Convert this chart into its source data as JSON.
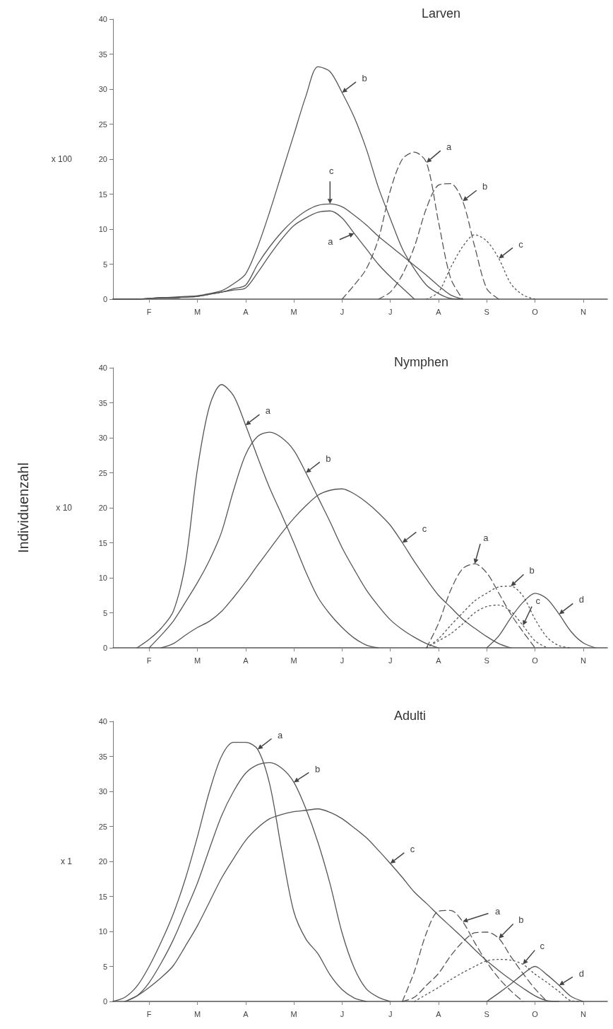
{
  "chart_data": [
    {
      "type": "line",
      "title": "Larven",
      "ylabel": "x 100",
      "ylim": [
        0,
        40
      ],
      "yticks": [
        0,
        5,
        10,
        15,
        20,
        25,
        30,
        35,
        40
      ],
      "categories": [
        null,
        null,
        null,
        "F",
        null,
        null,
        null,
        "M",
        null,
        null,
        null,
        "A",
        null,
        null,
        null,
        "M",
        null,
        null,
        null,
        "J",
        null,
        null,
        null,
        "J",
        null,
        null,
        null,
        "A",
        null,
        null,
        null,
        "S",
        null,
        null,
        null,
        "O",
        null,
        null,
        null,
        "N",
        null,
        null
      ],
      "series": [
        {
          "color": "#555555",
          "line_style": "solid",
          "values": [
            0,
            0,
            0,
            0.1,
            0.2,
            0.3,
            0.4,
            0.5,
            0.8,
            1.2,
            2.2,
            3.6,
            7.5,
            12.5,
            18,
            23.5,
            29,
            33.2,
            32.5,
            29.5,
            26,
            21.5,
            16,
            11.5,
            7.2,
            4.3,
            2,
            0.8,
            0.1,
            0,
            null,
            null,
            null,
            null,
            null,
            null,
            null,
            null,
            null,
            null,
            null,
            null
          ]
        },
        {
          "color": "#555555",
          "line_style": "solid",
          "values": [
            0,
            0,
            0,
            0.1,
            0.2,
            0.2,
            0.3,
            0.4,
            0.7,
            1,
            1.5,
            2,
            5,
            7.5,
            9.6,
            11.3,
            12.6,
            13.4,
            13.6,
            13.2,
            12,
            10.6,
            9,
            7.6,
            6.2,
            4.8,
            3.4,
            1.9,
            0.6,
            0,
            null,
            null,
            null,
            null,
            null,
            null,
            null,
            null,
            null,
            null,
            null,
            null
          ]
        },
        {
          "color": "#555555",
          "line_style": "solid",
          "values": [
            0,
            0,
            0,
            0.1,
            0.2,
            0.2,
            0.3,
            0.4,
            0.7,
            1,
            1.3,
            1.6,
            3.8,
            6.3,
            8.6,
            10.5,
            11.6,
            12.4,
            12.6,
            11.6,
            9.4,
            7.2,
            5,
            3.2,
            1.6,
            0,
            null,
            null,
            null,
            null,
            null,
            null,
            null,
            null,
            null,
            null,
            null,
            null,
            null,
            null,
            null,
            null
          ]
        },
        {
          "color": "#555555",
          "line_style": "dashed",
          "values": [
            null,
            null,
            null,
            null,
            null,
            null,
            null,
            null,
            null,
            null,
            null,
            null,
            null,
            null,
            null,
            null,
            null,
            null,
            null,
            0,
            2,
            4.3,
            8.5,
            15.5,
            20,
            21,
            19.5,
            11,
            3,
            0,
            null,
            null,
            null,
            null,
            null,
            null,
            null,
            null,
            null,
            null,
            null,
            null
          ]
        },
        {
          "color": "#555555",
          "line_style": "dashed",
          "values": [
            null,
            null,
            null,
            null,
            null,
            null,
            null,
            null,
            null,
            null,
            null,
            null,
            null,
            null,
            null,
            null,
            null,
            null,
            null,
            null,
            null,
            null,
            0,
            1,
            3.5,
            7.5,
            13,
            16.3,
            16.5,
            14,
            7.5,
            1.5,
            0,
            null,
            null,
            null,
            null,
            null,
            null,
            null,
            null,
            null
          ]
        },
        {
          "color": "#555555",
          "line_style": "dotted",
          "values": [
            null,
            null,
            null,
            null,
            null,
            null,
            null,
            null,
            null,
            null,
            null,
            null,
            null,
            null,
            null,
            null,
            null,
            null,
            null,
            null,
            null,
            null,
            null,
            null,
            null,
            null,
            0,
            1,
            4.5,
            7.5,
            9.2,
            8.3,
            5.8,
            2.2,
            0.6,
            0,
            null,
            null,
            null,
            null,
            null,
            null
          ]
        }
      ],
      "annotations": [
        "b",
        "c",
        "a",
        "a",
        "b",
        "c"
      ]
    },
    {
      "type": "line",
      "title": "Nymphen",
      "ylabel": "x 10",
      "ylim": [
        0,
        40
      ],
      "yticks": [
        0,
        5,
        10,
        15,
        20,
        25,
        30,
        35,
        40
      ],
      "categories": [
        null,
        null,
        null,
        "F",
        null,
        null,
        null,
        "M",
        null,
        null,
        null,
        "A",
        null,
        null,
        null,
        "M",
        null,
        null,
        null,
        "J",
        null,
        null,
        null,
        "J",
        null,
        null,
        null,
        "A",
        null,
        null,
        null,
        "S",
        null,
        null,
        null,
        "O",
        null,
        null,
        null,
        "N",
        null,
        null
      ],
      "series": [
        {
          "color": "#555555",
          "line_style": "solid",
          "values": [
            null,
            null,
            0,
            1.2,
            2.8,
            5.2,
            12,
            25.5,
            34.5,
            37.6,
            36,
            31.8,
            27.2,
            22.8,
            19,
            15,
            10.8,
            7.2,
            4.8,
            2.9,
            1.4,
            0.4,
            0,
            null,
            null,
            null,
            null,
            null,
            null,
            null,
            null,
            null,
            null,
            null,
            null,
            null,
            null,
            null,
            null,
            null,
            null,
            null
          ]
        },
        {
          "color": "#555555",
          "line_style": "solid",
          "values": [
            null,
            null,
            null,
            0,
            1.8,
            3.8,
            6.5,
            9.3,
            12.5,
            16.5,
            22.5,
            27.6,
            30.2,
            30.8,
            30,
            28.2,
            25,
            21.5,
            18,
            14.3,
            11.2,
            8.3,
            6,
            4,
            2.6,
            1.5,
            0.6,
            0,
            null,
            null,
            null,
            null,
            null,
            null,
            null,
            null,
            null,
            null,
            null,
            null,
            null,
            null
          ]
        },
        {
          "color": "#555555",
          "line_style": "solid",
          "values": [
            null,
            null,
            null,
            null,
            0,
            0.6,
            1.8,
            2.9,
            3.8,
            5.2,
            7.2,
            9.4,
            11.8,
            14.1,
            16.4,
            18.5,
            20.3,
            21.8,
            22.5,
            22.7,
            22,
            20.8,
            19.3,
            17.5,
            15,
            12.3,
            9.8,
            7.5,
            5.8,
            4.1,
            2.8,
            1.6,
            0.6,
            0,
            null,
            null,
            null,
            null,
            null,
            null,
            null,
            null
          ]
        },
        {
          "color": "#555555",
          "line_style": "dashed",
          "values": [
            null,
            null,
            null,
            null,
            null,
            null,
            null,
            null,
            null,
            null,
            null,
            null,
            null,
            null,
            null,
            null,
            null,
            null,
            null,
            null,
            null,
            null,
            null,
            null,
            null,
            null,
            0,
            3.5,
            8.2,
            11.3,
            12,
            10.7,
            7.8,
            4.8,
            2.3,
            0,
            null,
            null,
            null,
            null,
            null,
            null
          ]
        },
        {
          "color": "#555555",
          "line_style": "dotted",
          "values": [
            null,
            null,
            null,
            null,
            null,
            null,
            null,
            null,
            null,
            null,
            null,
            null,
            null,
            null,
            null,
            null,
            null,
            null,
            null,
            null,
            null,
            null,
            null,
            null,
            null,
            null,
            0,
            1.3,
            3.2,
            5,
            6.7,
            7.8,
            8.7,
            8.8,
            7.4,
            4.1,
            1.5,
            0.3,
            0,
            null,
            null,
            null
          ]
        },
        {
          "color": "#555555",
          "line_style": "dotted",
          "values": [
            null,
            null,
            null,
            null,
            null,
            null,
            null,
            null,
            null,
            null,
            null,
            null,
            null,
            null,
            null,
            null,
            null,
            null,
            null,
            null,
            null,
            null,
            null,
            null,
            null,
            null,
            0,
            1,
            2,
            3.4,
            5,
            5.9,
            6.1,
            5.2,
            3.2,
            1,
            0,
            null,
            null,
            null,
            null,
            null
          ]
        },
        {
          "color": "#555555",
          "line_style": "solid",
          "values": [
            null,
            null,
            null,
            null,
            null,
            null,
            null,
            null,
            null,
            null,
            null,
            null,
            null,
            null,
            null,
            null,
            null,
            null,
            null,
            null,
            null,
            null,
            null,
            null,
            null,
            null,
            null,
            null,
            null,
            null,
            null,
            0,
            1.7,
            4.3,
            6.5,
            7.8,
            7,
            4.8,
            2.3,
            0.7,
            0,
            null
          ]
        }
      ],
      "annotations": [
        "Individuenzahl",
        "a",
        "b",
        "c",
        "a",
        "b",
        "c",
        "d"
      ]
    },
    {
      "type": "line",
      "title": "Adulti",
      "ylabel": "x 1",
      "ylim": [
        0,
        40
      ],
      "yticks": [
        0,
        5,
        10,
        15,
        20,
        25,
        30,
        35,
        40
      ],
      "categories": [
        null,
        null,
        null,
        "F",
        null,
        null,
        null,
        "M",
        null,
        null,
        null,
        "A",
        null,
        null,
        null,
        "M",
        null,
        null,
        null,
        "J",
        null,
        null,
        null,
        "J",
        null,
        null,
        null,
        "A",
        null,
        null,
        null,
        "S",
        null,
        null,
        null,
        "O",
        null,
        null,
        null,
        "N",
        null,
        null
      ],
      "series": [
        {
          "color": "#555555",
          "line_style": "solid",
          "values": [
            0,
            0.6,
            2.2,
            5,
            8.5,
            12.5,
            17.5,
            23.5,
            30,
            35,
            37,
            37,
            36,
            31,
            21.5,
            12.8,
            8.9,
            6.8,
            3.8,
            1.7,
            0.5,
            0,
            null,
            null,
            null,
            null,
            null,
            null,
            null,
            null,
            null,
            null,
            null,
            null,
            null,
            null,
            null,
            null,
            null,
            null,
            null,
            null
          ]
        },
        {
          "color": "#555555",
          "line_style": "solid",
          "values": [
            null,
            0,
            0.8,
            2.7,
            5.5,
            8.8,
            12.8,
            16.9,
            21.8,
            26.5,
            30,
            32.6,
            33.8,
            34.1,
            33.3,
            31.3,
            27.5,
            22.7,
            16.8,
            9.8,
            4.8,
            1.8,
            0.6,
            0,
            null,
            null,
            null,
            null,
            null,
            null,
            null,
            null,
            null,
            null,
            null,
            null,
            null,
            null,
            null,
            null,
            null,
            null
          ]
        },
        {
          "color": "#555555",
          "line_style": "solid",
          "values": [
            null,
            0,
            0.8,
            2,
            3.4,
            5.1,
            7.9,
            10.8,
            14.2,
            17.6,
            20.4,
            23,
            24.8,
            26.1,
            26.7,
            27.1,
            27.3,
            27.5,
            27,
            26.1,
            24.8,
            23.4,
            21.6,
            19.7,
            17.7,
            15.6,
            14,
            12.3,
            10.7,
            9.1,
            7.4,
            5.8,
            4.4,
            3.1,
            1.9,
            0.8,
            0.1,
            0,
            null,
            null,
            null,
            null
          ]
        },
        {
          "color": "#555555",
          "line_style": "dashed",
          "values": [
            null,
            null,
            null,
            null,
            null,
            null,
            null,
            null,
            null,
            null,
            null,
            null,
            null,
            null,
            null,
            null,
            null,
            null,
            null,
            null,
            null,
            null,
            null,
            null,
            0,
            4.3,
            9.8,
            12.9,
            13,
            11.4,
            8.4,
            5.6,
            3.3,
            1.5,
            0,
            null,
            null,
            null,
            null,
            null,
            null,
            null
          ]
        },
        {
          "color": "#555555",
          "line_style": "dashed",
          "values": [
            null,
            null,
            null,
            null,
            null,
            null,
            null,
            null,
            null,
            null,
            null,
            null,
            null,
            null,
            null,
            null,
            null,
            null,
            null,
            null,
            null,
            null,
            null,
            null,
            0,
            0.6,
            2.3,
            4,
            6.5,
            8.5,
            9.8,
            9.9,
            9,
            6.4,
            4,
            1.8,
            0,
            null,
            null,
            null,
            null,
            null
          ]
        },
        {
          "color": "#555555",
          "line_style": "dotted",
          "values": [
            null,
            null,
            null,
            null,
            null,
            null,
            null,
            null,
            null,
            null,
            null,
            null,
            null,
            null,
            null,
            null,
            null,
            null,
            null,
            null,
            null,
            null,
            null,
            null,
            null,
            0,
            1,
            2,
            3.1,
            4.1,
            5,
            5.8,
            6,
            5.9,
            5.3,
            3.9,
            2.7,
            1.4,
            0.1,
            0,
            null,
            null
          ]
        },
        {
          "color": "#555555",
          "line_style": "solid",
          "values": [
            null,
            null,
            null,
            null,
            null,
            null,
            null,
            null,
            null,
            null,
            null,
            null,
            null,
            null,
            null,
            null,
            null,
            null,
            null,
            null,
            null,
            null,
            null,
            null,
            null,
            null,
            null,
            null,
            null,
            null,
            null,
            0,
            1.2,
            2.5,
            3.9,
            5,
            3.8,
            2.3,
            0.7,
            0,
            null,
            null
          ]
        }
      ],
      "annotations": [
        "a",
        "b",
        "c",
        "a",
        "b",
        "c",
        "d"
      ]
    }
  ]
}
